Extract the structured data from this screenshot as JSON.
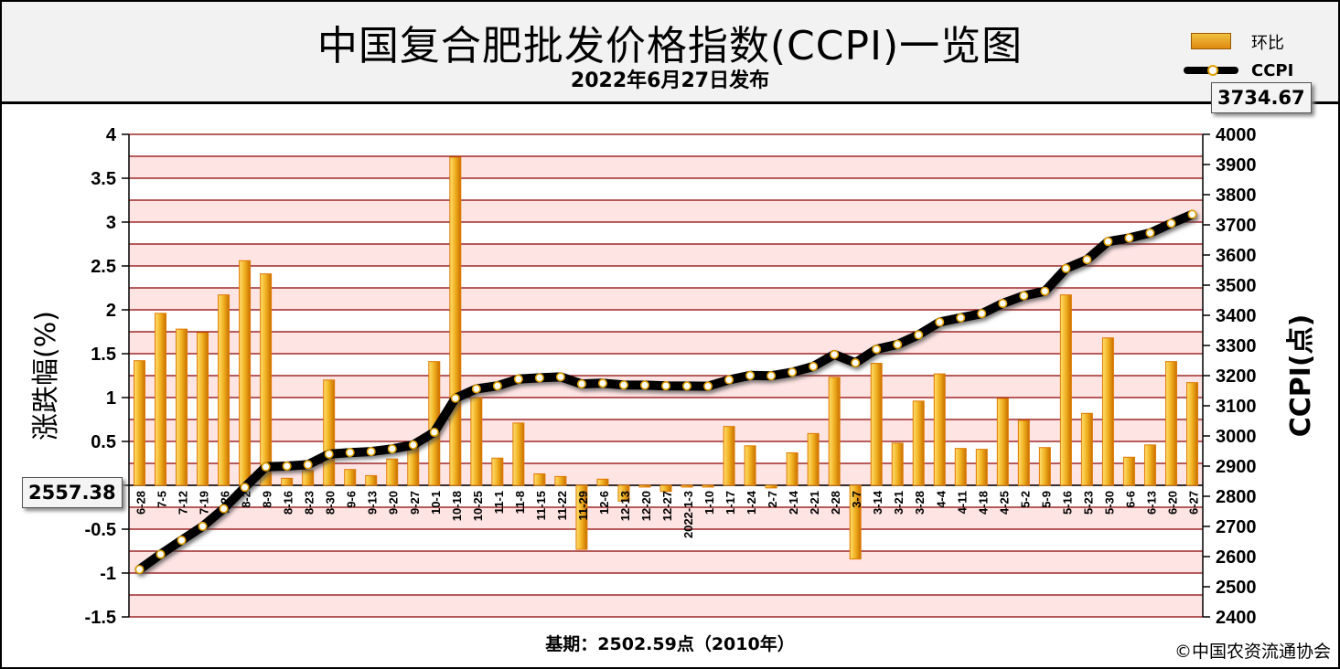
{
  "title": "中国复合肥批发价格指数(CCPI)一览图",
  "subtitle": "2022年6月27日发布",
  "legend": {
    "bar_label": "环比",
    "line_label": "CCPI"
  },
  "footer": {
    "base_note": "基期：2502.59点（2010年）",
    "copyright": "©中国农资流通协会"
  },
  "callouts": {
    "start": "2557.38",
    "end": "3734.67"
  },
  "chart_data": {
    "type": "bar+line",
    "categories": [
      "6-28",
      "7-5",
      "7-12",
      "7-19",
      "7-26",
      "8-2",
      "8-9",
      "8-16",
      "8-23",
      "8-30",
      "9-6",
      "9-13",
      "9-20",
      "9-27",
      "10-1",
      "10-18",
      "10-25",
      "11-1",
      "11-8",
      "11-15",
      "11-22",
      "11-29",
      "12-6",
      "12-13",
      "12-20",
      "12-27",
      "2022-1-3",
      "1-10",
      "1-17",
      "1-24",
      "2-7",
      "2-14",
      "2-21",
      "2-28",
      "3-7",
      "3-14",
      "3-21",
      "3-28",
      "4-4",
      "4-11",
      "4-18",
      "4-25",
      "5-2",
      "5-9",
      "5-16",
      "5-23",
      "5-30",
      "6-6",
      "6-13",
      "6-20",
      "6-27"
    ],
    "series": [
      {
        "name": "环比",
        "axis": "left",
        "values": [
          1.42,
          1.96,
          1.78,
          1.74,
          2.17,
          2.56,
          2.41,
          0.08,
          0.17,
          1.2,
          0.18,
          0.11,
          0.3,
          0.45,
          1.41,
          3.74,
          1.0,
          0.31,
          0.71,
          0.13,
          0.1,
          -0.73,
          0.07,
          -0.18,
          -0.02,
          -0.07,
          -0.02,
          -0.02,
          0.67,
          0.45,
          -0.03,
          0.37,
          0.59,
          1.23,
          -0.84,
          1.39,
          0.48,
          0.96,
          1.27,
          0.42,
          0.41,
          0.99,
          0.74,
          0.43,
          2.17,
          0.82,
          1.68,
          0.32,
          0.46,
          1.41,
          1.17
        ]
      },
      {
        "name": "CCPI",
        "axis": "right",
        "values": [
          2557.38,
          2607.5,
          2654.0,
          2700.2,
          2758.8,
          2829.5,
          2897.6,
          2899.9,
          2904.8,
          2939.7,
          2945.0,
          2948.2,
          2957.1,
          2970.4,
          3012.3,
          3125.0,
          3156.2,
          3166.0,
          3188.5,
          3192.6,
          3195.8,
          3172.5,
          3174.7,
          3169.0,
          3168.4,
          3166.2,
          3165.6,
          3165.0,
          3186.2,
          3200.5,
          3199.5,
          3211.3,
          3230.3,
          3270.0,
          3242.5,
          3287.6,
          3303.4,
          3335.1,
          3377.5,
          3391.7,
          3405.6,
          3439.3,
          3464.8,
          3479.7,
          3555.2,
          3584.4,
          3644.6,
          3656.3,
          3673.1,
          3704.9,
          3734.67
        ]
      }
    ],
    "ylabel_left": "涨跌幅(%)",
    "ylabel_right": "CCPI(点)",
    "ylim_left": [
      -1.5,
      4
    ],
    "ylim_right": [
      2400,
      4000
    ],
    "yticks_left": [
      "4",
      "3.5",
      "3",
      "2.5",
      "2",
      "1.5",
      "1",
      "0.5",
      "0",
      "-0.5",
      "-1",
      "-1.5"
    ],
    "yticks_right": [
      "4000",
      "3900",
      "3800",
      "3700",
      "3600",
      "3500",
      "3400",
      "3300",
      "3200",
      "3100",
      "3000",
      "2900",
      "2800",
      "2700",
      "2600",
      "2500",
      "2400"
    ],
    "grid": true
  },
  "colors": {
    "band": "#ffe4e4",
    "grid": "#8b0000",
    "bar_top": "#f0c040",
    "bar_edge": "#e07800",
    "line": "#000000",
    "dot": "#ffffff",
    "dot_edge": "#e0a000"
  }
}
